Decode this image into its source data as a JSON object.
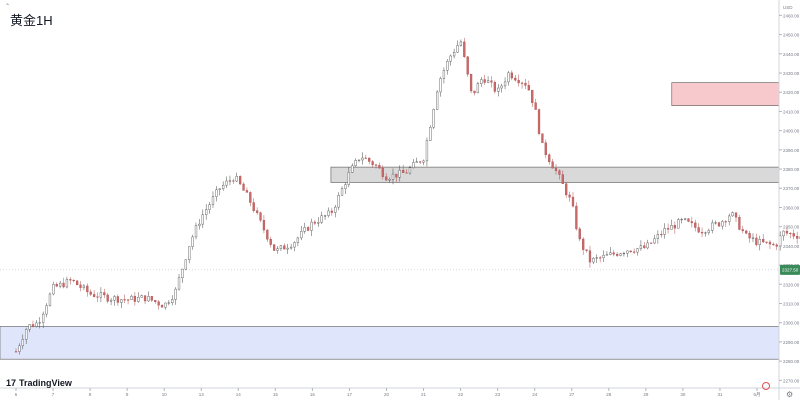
{
  "header": {
    "title": "黄金1H",
    "collapse_icon": "chevron-up-icon"
  },
  "branding": {
    "logo_text": "TradingView",
    "logo_icon": "tradingview-logo-icon"
  },
  "chart_data": {
    "type": "candlestick",
    "title": "黄金1H",
    "currency_label": "USD",
    "y_ticks": [
      "2460.00",
      "2450.00",
      "2440.00",
      "2430.00",
      "2420.00",
      "2410.00",
      "2400.00",
      "2390.00",
      "2380.00",
      "2370.00",
      "2360.00",
      "2350.00",
      "2340.00",
      "2330.00",
      "2320.00",
      "2310.00",
      "2300.00",
      "2290.00",
      "2280.00",
      "2270.00"
    ],
    "ylim": [
      2266,
      2468
    ],
    "last_price_label": "2327.50",
    "last_price": 2327.5,
    "x_ticks": [
      "6",
      "7",
      "8",
      "9",
      "10",
      "13",
      "14",
      "15",
      "16",
      "17",
      "20",
      "21",
      "22",
      "23",
      "24",
      "27",
      "28",
      "29",
      "30",
      "31",
      "6月"
    ],
    "zones": [
      {
        "name": "red-supply-zone",
        "ymin": 2413,
        "ymax": 2425,
        "start_index": 17.7,
        "color": "#f8c9cc"
      },
      {
        "name": "grey-zone",
        "ymin": 2373,
        "ymax": 2381,
        "start_index": 8.5,
        "color": "#d9d9d9"
      },
      {
        "name": "blue-demand-zone",
        "ymin": 2281,
        "ymax": 2298,
        "start_index": 0,
        "color": "#dfe6fb"
      }
    ],
    "trend": [
      [
        0,
        2285
      ],
      [
        0.3,
        2298
      ],
      [
        0.6,
        2300
      ],
      [
        1.0,
        2318
      ],
      [
        1.5,
        2322
      ],
      [
        2.0,
        2315
      ],
      [
        2.5,
        2313
      ],
      [
        3.0,
        2312
      ],
      [
        3.5,
        2313
      ],
      [
        4.0,
        2309
      ],
      [
        4.3,
        2316
      ],
      [
        4.7,
        2342
      ],
      [
        5.0,
        2355
      ],
      [
        5.5,
        2370
      ],
      [
        5.9,
        2376
      ],
      [
        6.3,
        2364
      ],
      [
        6.6,
        2352
      ],
      [
        7.0,
        2337
      ],
      [
        7.5,
        2342
      ],
      [
        8.0,
        2352
      ],
      [
        8.5,
        2357
      ],
      [
        8.7,
        2365
      ],
      [
        9.0,
        2378
      ],
      [
        9.3,
        2387
      ],
      [
        9.7,
        2382
      ],
      [
        10.0,
        2376
      ],
      [
        10.5,
        2378
      ],
      [
        11.0,
        2386
      ],
      [
        11.2,
        2405
      ],
      [
        11.4,
        2425
      ],
      [
        11.7,
        2438
      ],
      [
        12.0,
        2447
      ],
      [
        12.3,
        2418
      ],
      [
        12.6,
        2428
      ],
      [
        13.0,
        2420
      ],
      [
        13.3,
        2430
      ],
      [
        13.8,
        2424
      ],
      [
        14.0,
        2412
      ],
      [
        14.2,
        2392
      ],
      [
        14.6,
        2378
      ],
      [
        14.8,
        2370
      ],
      [
        15.0,
        2362
      ],
      [
        15.2,
        2343
      ],
      [
        15.5,
        2332
      ],
      [
        16.0,
        2335
      ],
      [
        16.5,
        2338
      ],
      [
        17.0,
        2339
      ],
      [
        17.5,
        2348
      ],
      [
        18.0,
        2353
      ],
      [
        18.5,
        2348
      ],
      [
        19.0,
        2352
      ],
      [
        19.3,
        2357
      ],
      [
        19.7,
        2345
      ],
      [
        20.0,
        2342
      ],
      [
        20.5,
        2340
      ],
      [
        20.7,
        2347
      ],
      [
        21.2,
        2345
      ],
      [
        21.5,
        2350
      ],
      [
        21.8,
        2328
      ],
      [
        22.0,
        2327
      ]
    ]
  }
}
